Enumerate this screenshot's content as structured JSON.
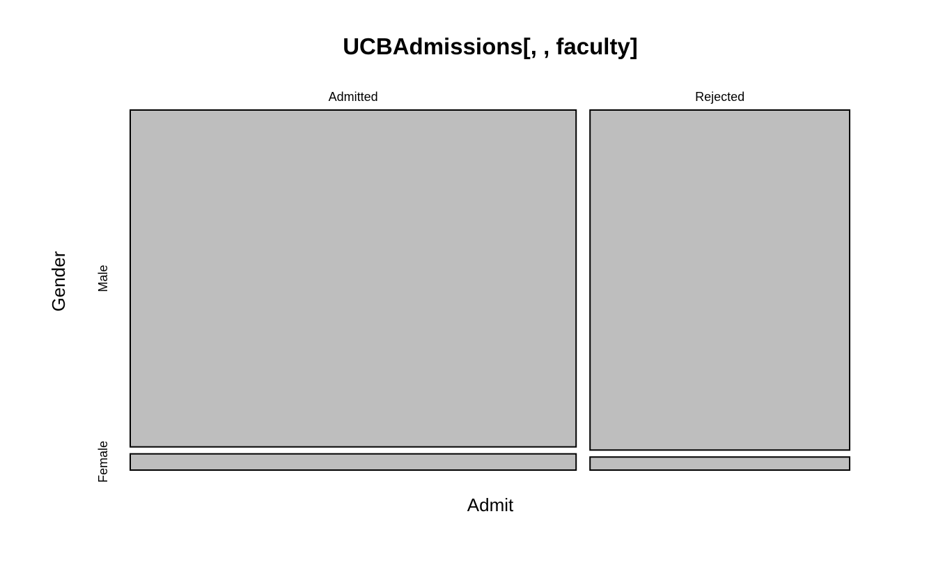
{
  "chart_data": {
    "type": "mosaic",
    "title": "UCBAdmissions[, , faculty]",
    "xlabel": "Admit",
    "ylabel": "Gender",
    "x_categories": [
      "Admitted",
      "Rejected"
    ],
    "y_categories": [
      "Male",
      "Female"
    ],
    "x_proportions": [
      0.632,
      0.368
    ],
    "conditional_proportions": {
      "Admitted": {
        "Male": 0.954,
        "Female": 0.046
      },
      "Rejected": {
        "Male": 0.963,
        "Female": 0.037
      }
    },
    "tile_color": "#bebebe",
    "border_color": "#000000"
  }
}
